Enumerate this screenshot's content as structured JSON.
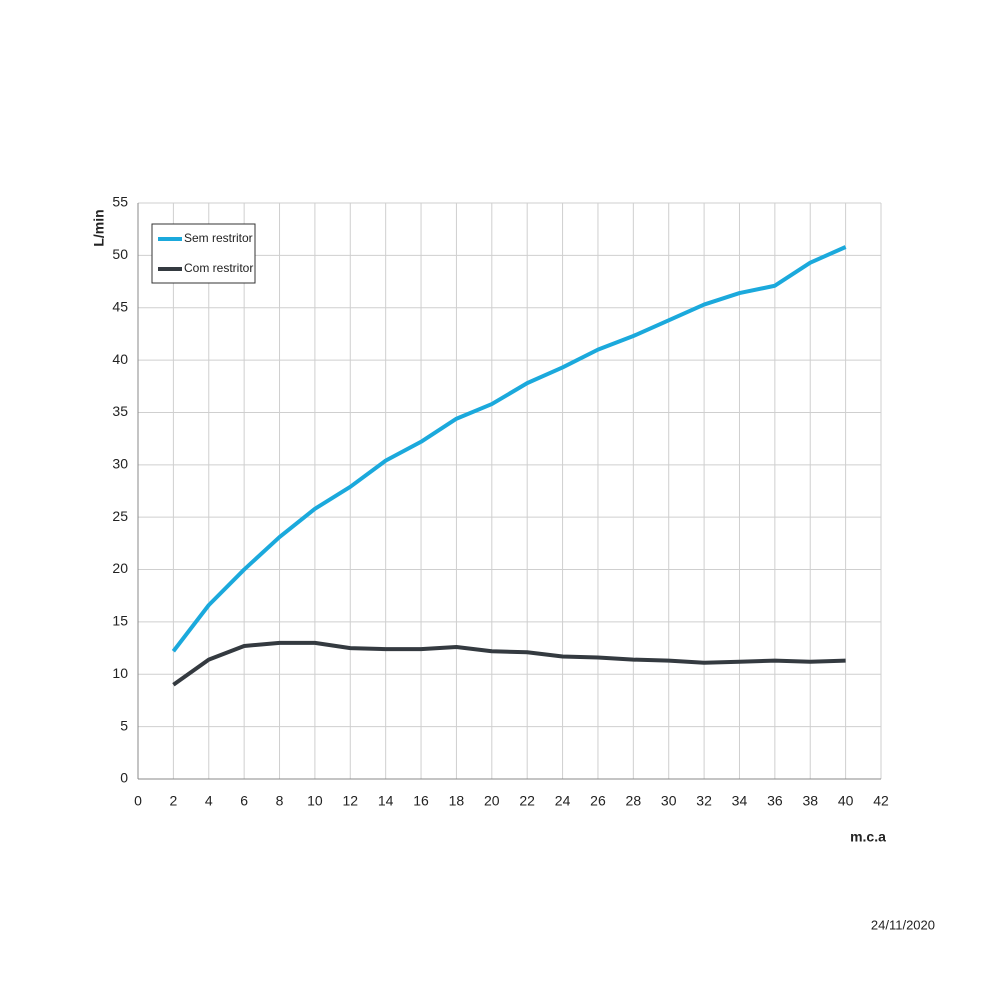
{
  "chart_data": {
    "type": "line",
    "x": [
      2,
      4,
      6,
      8,
      10,
      12,
      14,
      16,
      18,
      20,
      22,
      24,
      26,
      28,
      30,
      32,
      34,
      36,
      38,
      40
    ],
    "series": [
      {
        "name": "Sem restritor",
        "color": "#1ba9dc",
        "values": [
          12.2,
          16.6,
          20.0,
          23.1,
          25.8,
          27.9,
          30.4,
          32.2,
          34.4,
          35.8,
          37.8,
          39.3,
          41.0,
          42.3,
          43.8,
          45.3,
          46.4,
          47.1,
          49.3,
          50.8
        ]
      },
      {
        "name": "Com restritor",
        "color": "#343a40",
        "values": [
          9.0,
          11.4,
          12.7,
          13.0,
          13.0,
          12.5,
          12.4,
          12.4,
          12.6,
          12.2,
          12.1,
          11.7,
          11.6,
          11.4,
          11.3,
          11.1,
          11.2,
          11.3,
          11.2,
          11.3
        ]
      }
    ],
    "xlabel": "m.c.a",
    "ylabel": "L/min",
    "xlim": [
      0,
      42
    ],
    "xticks": [
      0,
      2,
      4,
      6,
      8,
      10,
      12,
      14,
      16,
      18,
      20,
      22,
      24,
      26,
      28,
      30,
      32,
      34,
      36,
      38,
      40,
      42
    ],
    "ylim": [
      0,
      55
    ],
    "yticks": [
      0,
      5,
      10,
      15,
      20,
      25,
      30,
      35,
      40,
      45,
      50,
      55
    ],
    "grid": true,
    "legend": "upper left",
    "date": "24/11/2020"
  }
}
